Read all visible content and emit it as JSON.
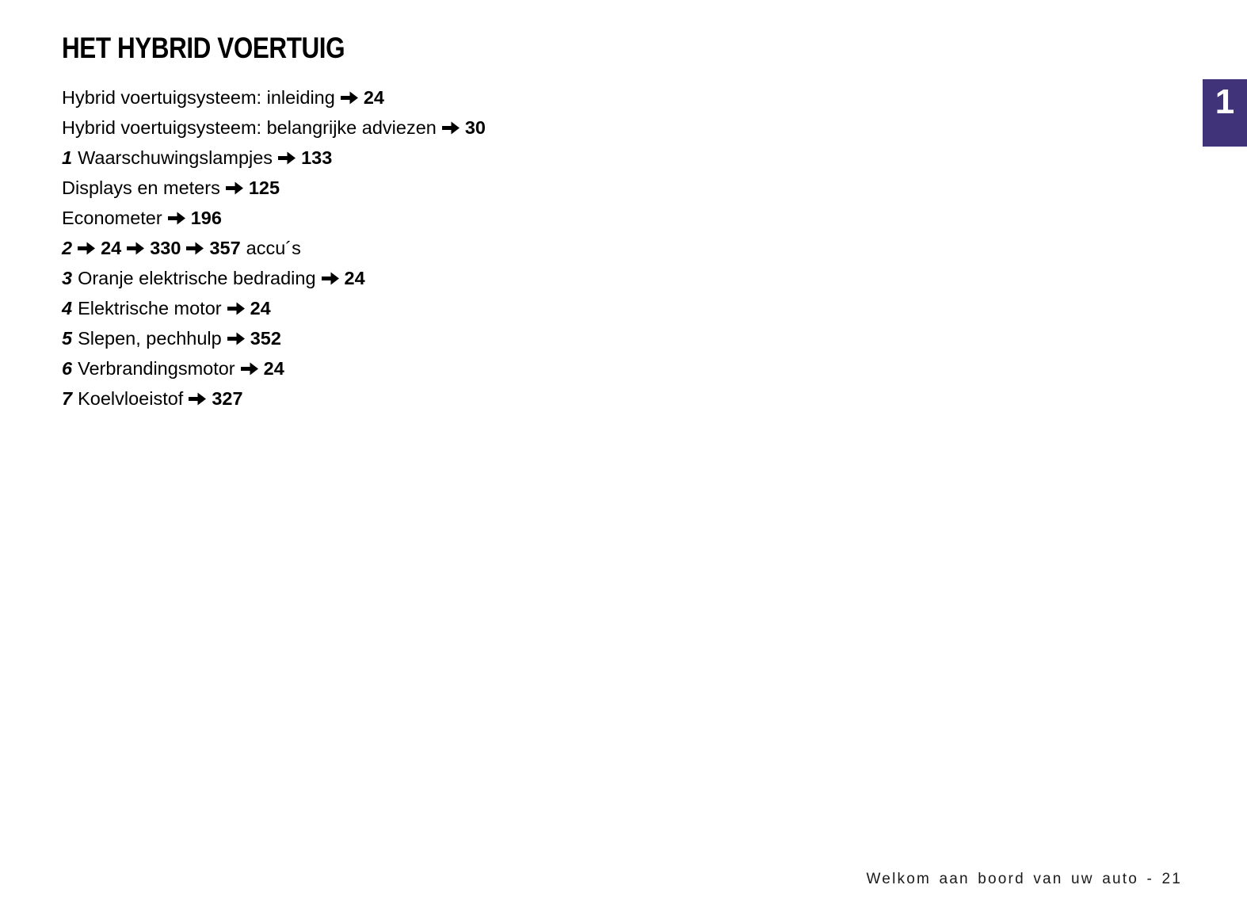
{
  "title": "HET HYBRID VOERTUIG",
  "tab": {
    "number": "1",
    "color": "#413379"
  },
  "toc": {
    "items": [
      {
        "segments": [
          {
            "t": "text",
            "v": "Hybrid voertuigsysteem: inleiding"
          },
          {
            "t": "arrow"
          },
          {
            "t": "page",
            "v": "24"
          }
        ]
      },
      {
        "segments": [
          {
            "t": "text",
            "v": "Hybrid voertuigsysteem: belangrijke adviezen"
          },
          {
            "t": "arrow"
          },
          {
            "t": "page",
            "v": "30"
          }
        ]
      },
      {
        "segments": [
          {
            "t": "num",
            "v": "1"
          },
          {
            "t": "text",
            "v": "Waarschuwingslampjes"
          },
          {
            "t": "arrow"
          },
          {
            "t": "page",
            "v": "133"
          }
        ]
      },
      {
        "segments": [
          {
            "t": "text",
            "v": "Displays en meters"
          },
          {
            "t": "arrow"
          },
          {
            "t": "page",
            "v": "125"
          }
        ]
      },
      {
        "segments": [
          {
            "t": "text",
            "v": "Econometer"
          },
          {
            "t": "arrow"
          },
          {
            "t": "page",
            "v": "196"
          }
        ]
      },
      {
        "segments": [
          {
            "t": "num",
            "v": "2"
          },
          {
            "t": "arrow"
          },
          {
            "t": "page",
            "v": "24"
          },
          {
            "t": "arrow"
          },
          {
            "t": "page",
            "v": "330"
          },
          {
            "t": "arrow"
          },
          {
            "t": "page",
            "v": "357"
          },
          {
            "t": "text",
            "v": "accu´s"
          }
        ]
      },
      {
        "segments": [
          {
            "t": "num",
            "v": "3"
          },
          {
            "t": "text",
            "v": "Oranje elektrische bedrading"
          },
          {
            "t": "arrow"
          },
          {
            "t": "page",
            "v": "24"
          }
        ]
      },
      {
        "segments": [
          {
            "t": "num",
            "v": "4"
          },
          {
            "t": "text",
            "v": "Elektrische motor"
          },
          {
            "t": "arrow"
          },
          {
            "t": "page",
            "v": "24"
          }
        ]
      },
      {
        "segments": [
          {
            "t": "num",
            "v": "5"
          },
          {
            "t": "text",
            "v": "Slepen, pechhulp"
          },
          {
            "t": "arrow"
          },
          {
            "t": "page",
            "v": "352"
          }
        ]
      },
      {
        "segments": [
          {
            "t": "num",
            "v": "6"
          },
          {
            "t": "text",
            "v": "Verbrandingsmotor"
          },
          {
            "t": "arrow"
          },
          {
            "t": "page",
            "v": "24"
          }
        ]
      },
      {
        "segments": [
          {
            "t": "num",
            "v": "7"
          },
          {
            "t": "text",
            "v": "Koelvloeistof"
          },
          {
            "t": "arrow"
          },
          {
            "t": "page",
            "v": "327"
          }
        ]
      }
    ]
  },
  "footer": {
    "text": "Welkom aan boord van uw auto - 21"
  }
}
